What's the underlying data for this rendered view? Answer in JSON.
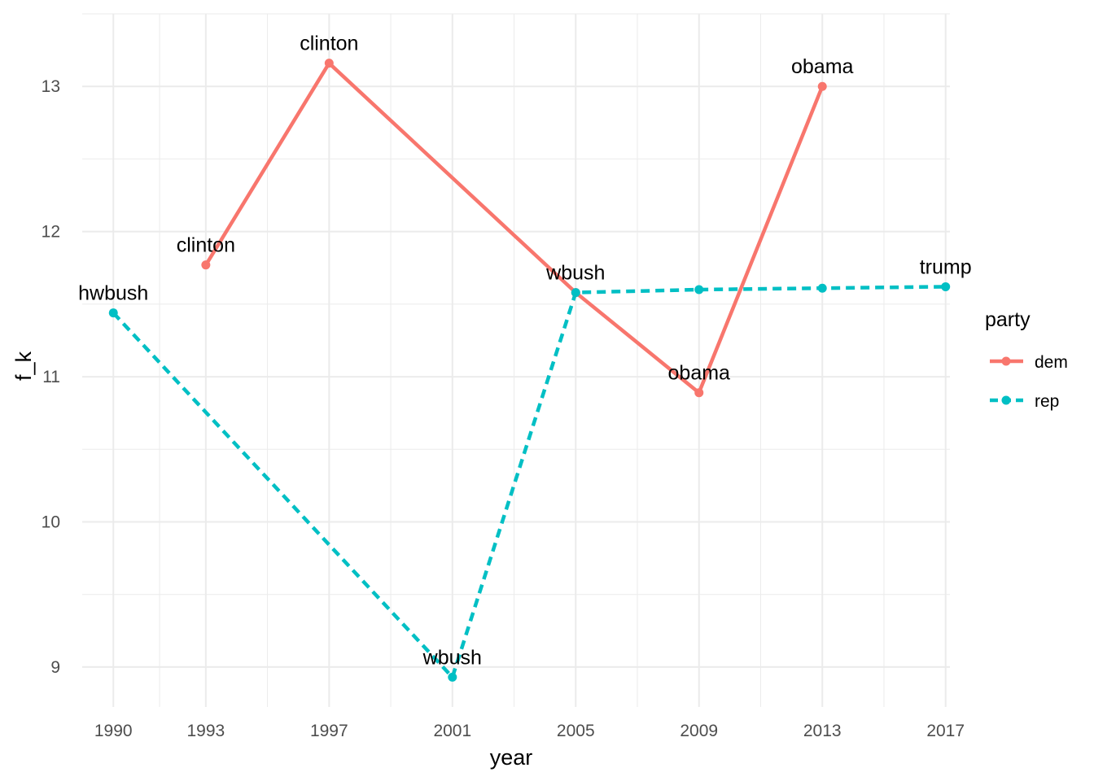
{
  "chart_data": {
    "type": "line",
    "title": "",
    "xlabel": "year",
    "ylabel": "f_k",
    "x_ticks": [
      1990,
      1993,
      1997,
      2001,
      2005,
      2009,
      2013,
      2017
    ],
    "y_ticks": [
      9,
      10,
      11,
      12,
      13
    ],
    "xlim": [
      1988.99,
      2017.14
    ],
    "ylim": [
      8.725,
      13.5
    ],
    "grid": true,
    "legend": {
      "title": "party",
      "position": "right",
      "entries": [
        "dem",
        "rep"
      ]
    },
    "series": [
      {
        "name": "dem",
        "color": "#f8766d",
        "line_style": "solid",
        "points": [
          {
            "x": 1993,
            "y": 11.77,
            "label": "clinton"
          },
          {
            "x": 1997,
            "y": 13.16,
            "label": "clinton"
          },
          {
            "x": 2005,
            "y": 11.58,
            "label": "wbush"
          },
          {
            "x": 2009,
            "y": 10.89,
            "label": "obama"
          },
          {
            "x": 2013,
            "y": 13.0,
            "label": "obama"
          }
        ]
      },
      {
        "name": "rep",
        "color": "#00bfc4",
        "line_style": "dashed",
        "points": [
          {
            "x": 1990,
            "y": 11.44,
            "label": "hwbush"
          },
          {
            "x": 2001,
            "y": 8.93,
            "label": "wbush"
          },
          {
            "x": 2005,
            "y": 11.58,
            "label": ""
          },
          {
            "x": 2009,
            "y": 11.6,
            "label": ""
          },
          {
            "x": 2013,
            "y": 11.61,
            "label": ""
          },
          {
            "x": 2017,
            "y": 11.62,
            "label": "trump"
          }
        ]
      }
    ]
  }
}
